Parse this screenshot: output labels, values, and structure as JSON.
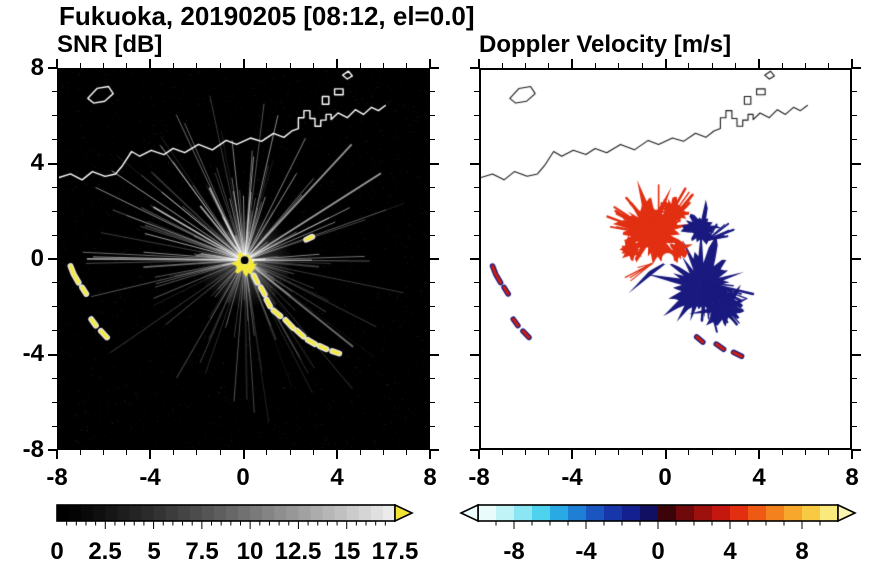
{
  "title": "Fukuoka, 20190205 [08:12, el=0.0]",
  "panels": {
    "snr": {
      "title": "SNR [dB]",
      "ytick_labels": [
        "8",
        "4",
        "0",
        "-4",
        "-8"
      ],
      "xtick_labels": [
        "-8",
        "-4",
        "0",
        "4",
        "8"
      ],
      "colorbar_labels": [
        "0",
        "2.5",
        "5",
        "7.5",
        "10",
        "12.5",
        "15",
        "17.5"
      ]
    },
    "doppler": {
      "title": "Doppler Velocity [m/s]",
      "xtick_labels": [
        "-8",
        "-4",
        "0",
        "4",
        "8"
      ],
      "colorbar_labels": [
        "-8",
        "-4",
        "0",
        "4",
        "8"
      ]
    }
  },
  "map": {
    "snr_coast_color": "#ffffff",
    "doppler_coast_color": "#1a1a1a",
    "coastline_main": [
      [
        -8,
        3.45
      ],
      [
        -7.5,
        3.6
      ],
      [
        -7.0,
        3.35
      ],
      [
        -6.55,
        3.7
      ],
      [
        -6.0,
        3.5
      ],
      [
        -5.55,
        3.6
      ],
      [
        -5.25,
        3.95
      ],
      [
        -4.85,
        4.55
      ],
      [
        -4.5,
        4.35
      ],
      [
        -4.0,
        4.6
      ],
      [
        -3.45,
        4.42
      ],
      [
        -3.05,
        4.68
      ],
      [
        -2.55,
        4.5
      ],
      [
        -1.95,
        4.85
      ],
      [
        -1.35,
        4.62
      ],
      [
        -0.75,
        5.02
      ],
      [
        -0.3,
        4.85
      ],
      [
        0.3,
        5.12
      ],
      [
        0.78,
        4.98
      ],
      [
        1.3,
        5.32
      ],
      [
        1.75,
        5.15
      ],
      [
        2.1,
        5.42
      ],
      [
        2.38,
        5.52
      ],
      [
        2.38,
        5.98
      ],
      [
        2.62,
        5.98
      ],
      [
        2.62,
        6.28
      ],
      [
        2.88,
        6.28
      ],
      [
        2.88,
        5.95
      ],
      [
        3.1,
        5.95
      ],
      [
        3.1,
        5.62
      ],
      [
        3.35,
        5.62
      ],
      [
        3.35,
        5.88
      ],
      [
        3.58,
        5.88
      ],
      [
        3.58,
        6.12
      ],
      [
        3.8,
        6.12
      ],
      [
        3.8,
        5.9
      ],
      [
        4.1,
        6.18
      ],
      [
        4.5,
        5.98
      ],
      [
        4.85,
        6.32
      ],
      [
        5.2,
        6.12
      ],
      [
        5.55,
        6.42
      ],
      [
        5.85,
        6.28
      ],
      [
        6.15,
        6.5
      ]
    ],
    "islands": [
      [
        [
          -6.75,
          6.8
        ],
        [
          -6.35,
          7.22
        ],
        [
          -5.85,
          7.3
        ],
        [
          -5.65,
          7.0
        ],
        [
          -6.02,
          6.68
        ],
        [
          -6.5,
          6.6
        ]
      ],
      [
        [
          3.42,
          6.55
        ],
        [
          3.7,
          6.55
        ],
        [
          3.7,
          6.88
        ],
        [
          3.42,
          6.88
        ]
      ],
      [
        [
          3.95,
          6.95
        ],
        [
          4.32,
          6.95
        ],
        [
          4.32,
          7.2
        ],
        [
          3.95,
          7.2
        ]
      ],
      [
        [
          4.3,
          7.78
        ],
        [
          4.55,
          7.95
        ],
        [
          4.72,
          7.75
        ],
        [
          4.5,
          7.62
        ]
      ]
    ]
  },
  "chart_data": [
    {
      "type": "heatmap",
      "name": "SNR",
      "units": "dB",
      "xlim": [
        -8,
        8
      ],
      "ylim": [
        -8,
        8
      ],
      "xticks": [
        -8,
        -4,
        0,
        4,
        8
      ],
      "yticks": [
        -8,
        -4,
        0,
        4,
        8
      ],
      "minor_tick_step": 1,
      "background": "#000000",
      "colorbar": {
        "min": 0,
        "max": 17.5,
        "label_step": 2.5,
        "minor_tick": 0.5,
        "tick_labels": [
          0,
          2.5,
          5,
          7.5,
          10,
          12.5,
          15,
          17.5
        ],
        "colormap_start": "#000000",
        "colormap_end": "#ebebeb",
        "segments": 28,
        "over_arrow_color": "#f2e434"
      },
      "features": {
        "radar_center": [
          0.05,
          -0.05
        ],
        "rays": {
          "count": 210,
          "seed": 7,
          "max_length": 7.0,
          "color": "#ffffff"
        },
        "glow": {
          "radius": 2.1,
          "alpha": 0.3
        },
        "noise": {
          "count": 2600,
          "seed": 3
        },
        "center_blob": {
          "cx": 0.05,
          "cy": -0.2,
          "r": 0.55,
          "color": "#f4ea3c",
          "seed": 41
        },
        "center_dot": {
          "cx": 0.05,
          "cy": -0.05,
          "r": 0.17,
          "color": "#000000"
        },
        "echo_color": "#f4ea3c",
        "echo_fringe": "#e8e8e8",
        "echo_chain": [
          [
            [
              0.45,
              -0.7
            ],
            [
              0.6,
              -1.0
            ]
          ],
          [
            [
              0.75,
              -1.2
            ],
            [
              0.92,
              -1.5
            ]
          ],
          [
            [
              1.0,
              -1.72
            ],
            [
              1.15,
              -2.0
            ]
          ],
          [
            [
              1.3,
              -2.18
            ],
            [
              1.6,
              -2.42
            ]
          ],
          [
            [
              1.82,
              -2.58
            ],
            [
              2.15,
              -2.92
            ]
          ],
          [
            [
              2.3,
              -3.02
            ],
            [
              2.6,
              -3.28
            ]
          ],
          [
            [
              2.78,
              -3.42
            ],
            [
              3.1,
              -3.6
            ]
          ],
          [
            [
              3.3,
              -3.68
            ],
            [
              3.6,
              -3.82
            ]
          ],
          [
            [
              3.85,
              -3.9
            ],
            [
              4.15,
              -4.0
            ]
          ],
          [
            [
              2.72,
              0.82
            ],
            [
              2.98,
              0.94
            ]
          ]
        ],
        "west_echoes": [
          [
            [
              -7.5,
              -0.3
            ],
            [
              -7.36,
              -0.65
            ],
            [
              -7.15,
              -1.0
            ]
          ],
          [
            [
              -7.0,
              -1.2
            ],
            [
              -6.82,
              -1.48
            ]
          ],
          [
            [
              -6.6,
              -2.55
            ],
            [
              -6.4,
              -2.82
            ]
          ],
          [
            [
              -6.18,
              -3.05
            ],
            [
              -5.92,
              -3.32
            ]
          ]
        ]
      }
    },
    {
      "type": "heatmap",
      "name": "Doppler Velocity",
      "units": "m/s",
      "xlim": [
        -8,
        8
      ],
      "ylim": [
        -8,
        8
      ],
      "xticks": [
        -8,
        -4,
        0,
        4,
        8
      ],
      "yticks": [
        -8,
        -4,
        0,
        4,
        8
      ],
      "minor_tick_step": 1,
      "background": "#ffffff",
      "colorbar": {
        "min": -10,
        "max": 10,
        "label_step": 4,
        "minor_tick": 1,
        "tick_labels": [
          -8,
          -4,
          0,
          4,
          8
        ],
        "palette": [
          "#eafbfb",
          "#c0f3f5",
          "#8ae6f2",
          "#4fd2ee",
          "#2aaae4",
          "#1f7fd4",
          "#1b55c0",
          "#1736aa",
          "#142090",
          "#100f62",
          "#3c0408",
          "#70090b",
          "#9c100d",
          "#c4170f",
          "#e22f12",
          "#ee5a14",
          "#f3821e",
          "#f6a72c",
          "#f8c943",
          "#fae97c"
        ],
        "under_arrow_color": "#effefe",
        "over_arrow_color": "#fdf6b0"
      },
      "features": {
        "negative_color": "#19197f",
        "positive_color": "#e22f12",
        "white_core": {
          "cx": 0.1,
          "cy": 0.0,
          "r": 0.26
        },
        "blobs": [
          {
            "cx": -0.55,
            "cy": 1.15,
            "r": 1.55,
            "spike": 0.8,
            "n": 64,
            "seed": 21,
            "color": "#e22f12"
          },
          {
            "cx": 0.3,
            "cy": 2.0,
            "r": 0.75,
            "spike": 0.9,
            "n": 40,
            "seed": 22,
            "color": "#e22f12"
          },
          {
            "cx": -1.5,
            "cy": 0.4,
            "r": 0.55,
            "spike": 0.6,
            "n": 32,
            "seed": 27,
            "color": "#e22f12"
          },
          {
            "cx": 1.55,
            "cy": -1.1,
            "r": 1.55,
            "spike": 0.85,
            "n": 64,
            "seed": 23,
            "color": "#19197f"
          },
          {
            "cx": 2.6,
            "cy": -2.1,
            "r": 0.85,
            "spike": 1.0,
            "n": 44,
            "seed": 24,
            "color": "#19197f"
          },
          {
            "cx": 1.55,
            "cy": 1.3,
            "r": 0.8,
            "spike": 0.7,
            "n": 40,
            "seed": 25,
            "color": "#19197f"
          },
          {
            "cx": 0.55,
            "cy": 0.35,
            "r": 0.5,
            "spike": 0.5,
            "n": 30,
            "seed": 26,
            "color": "#e22f12"
          }
        ],
        "wedges": [
          {
            "pts": [
              [
                0.2,
                -0.05
              ],
              [
                -1.6,
                -1.45
              ],
              [
                -0.6,
                -0.4
              ]
            ],
            "color": "#19197f"
          },
          {
            "pts": [
              [
                0.25,
                0.02
              ],
              [
                -1.3,
                -0.85
              ],
              [
                -0.35,
                -0.12
              ]
            ],
            "color": "#ffffff"
          }
        ],
        "spike_rays": [
          {
            "cx": -0.3,
            "cy": 1.0,
            "a0": 40,
            "a1": 175,
            "count": 30,
            "lmin": 0.8,
            "lmax": 2.4,
            "wmin": 1.2,
            "wmax": 3,
            "seed": 31,
            "color": "#e22f12"
          },
          {
            "cx": 1.7,
            "cy": -1.0,
            "a0": 265,
            "a1": 355,
            "count": 26,
            "lmin": 0.8,
            "lmax": 2.3,
            "wmin": 1.2,
            "wmax": 3,
            "seed": 32,
            "color": "#19197f"
          },
          {
            "cx": 1.8,
            "cy": 0.8,
            "a0": 10,
            "a1": 60,
            "count": 8,
            "lmin": 0.5,
            "lmax": 1.4,
            "wmin": 1,
            "wmax": 2.2,
            "seed": 33,
            "color": "#19197f"
          },
          {
            "cx": -0.6,
            "cy": -0.2,
            "a0": 195,
            "a1": 235,
            "count": 5,
            "lmin": 0.5,
            "lmax": 1.3,
            "wmin": 1,
            "wmax": 2,
            "seed": 34,
            "color": "#e22f12"
          }
        ],
        "echo_main": "#cf1d10",
        "echo_edge": "#19197f",
        "west_echoes": [
          [
            [
              -7.5,
              -0.3
            ],
            [
              -7.36,
              -0.65
            ],
            [
              -7.15,
              -1.0
            ]
          ],
          [
            [
              -7.0,
              -1.2
            ],
            [
              -6.82,
              -1.48
            ]
          ],
          [
            [
              -6.6,
              -2.55
            ],
            [
              -6.4,
              -2.82
            ]
          ],
          [
            [
              -6.18,
              -3.05
            ],
            [
              -5.92,
              -3.32
            ]
          ]
        ],
        "south_echoes": [
          [
            [
              1.35,
              -3.3
            ],
            [
              1.62,
              -3.52
            ]
          ],
          [
            [
              2.2,
              -3.6
            ],
            [
              2.52,
              -3.82
            ]
          ],
          [
            [
              2.95,
              -3.95
            ],
            [
              3.3,
              -4.12
            ]
          ]
        ]
      }
    }
  ]
}
